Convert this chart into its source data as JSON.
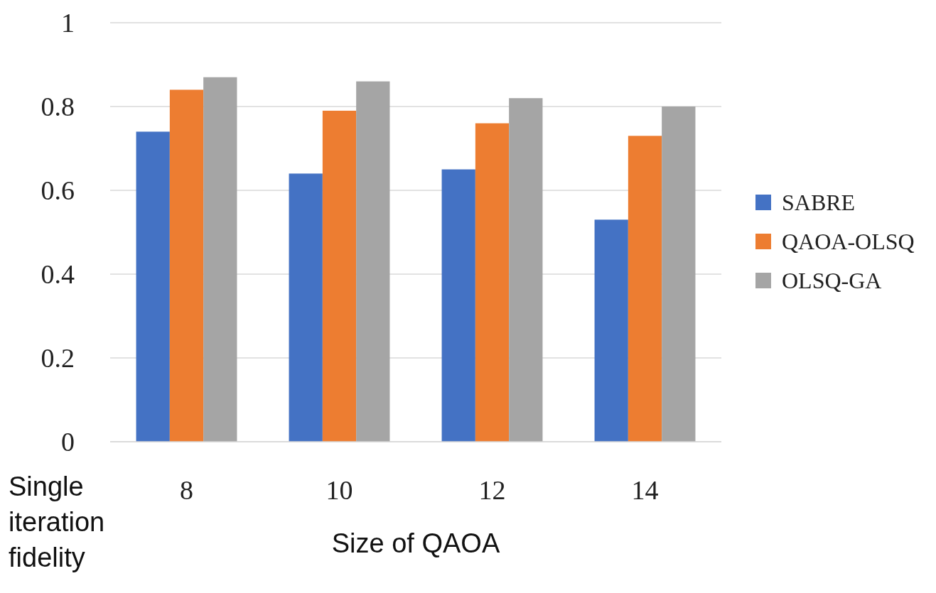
{
  "chart_data": {
    "type": "bar",
    "xlabel": "Size of QAOA",
    "ylabel": "Single iteration fidelity",
    "categories": [
      "8",
      "10",
      "12",
      "14"
    ],
    "series": [
      {
        "name": "SABRE",
        "color": "#4472c4",
        "values": [
          0.74,
          0.64,
          0.65,
          0.53
        ]
      },
      {
        "name": "QAOA-OLSQ",
        "color": "#ed7d31",
        "values": [
          0.84,
          0.79,
          0.76,
          0.73
        ]
      },
      {
        "name": "OLSQ-GA",
        "color": "#a5a5a5",
        "values": [
          0.87,
          0.86,
          0.82,
          0.8
        ]
      }
    ],
    "ylim": [
      0,
      1
    ],
    "yticks": [
      0,
      0.2,
      0.4,
      0.6,
      0.8,
      1
    ],
    "grid": "y",
    "legend": "right"
  }
}
